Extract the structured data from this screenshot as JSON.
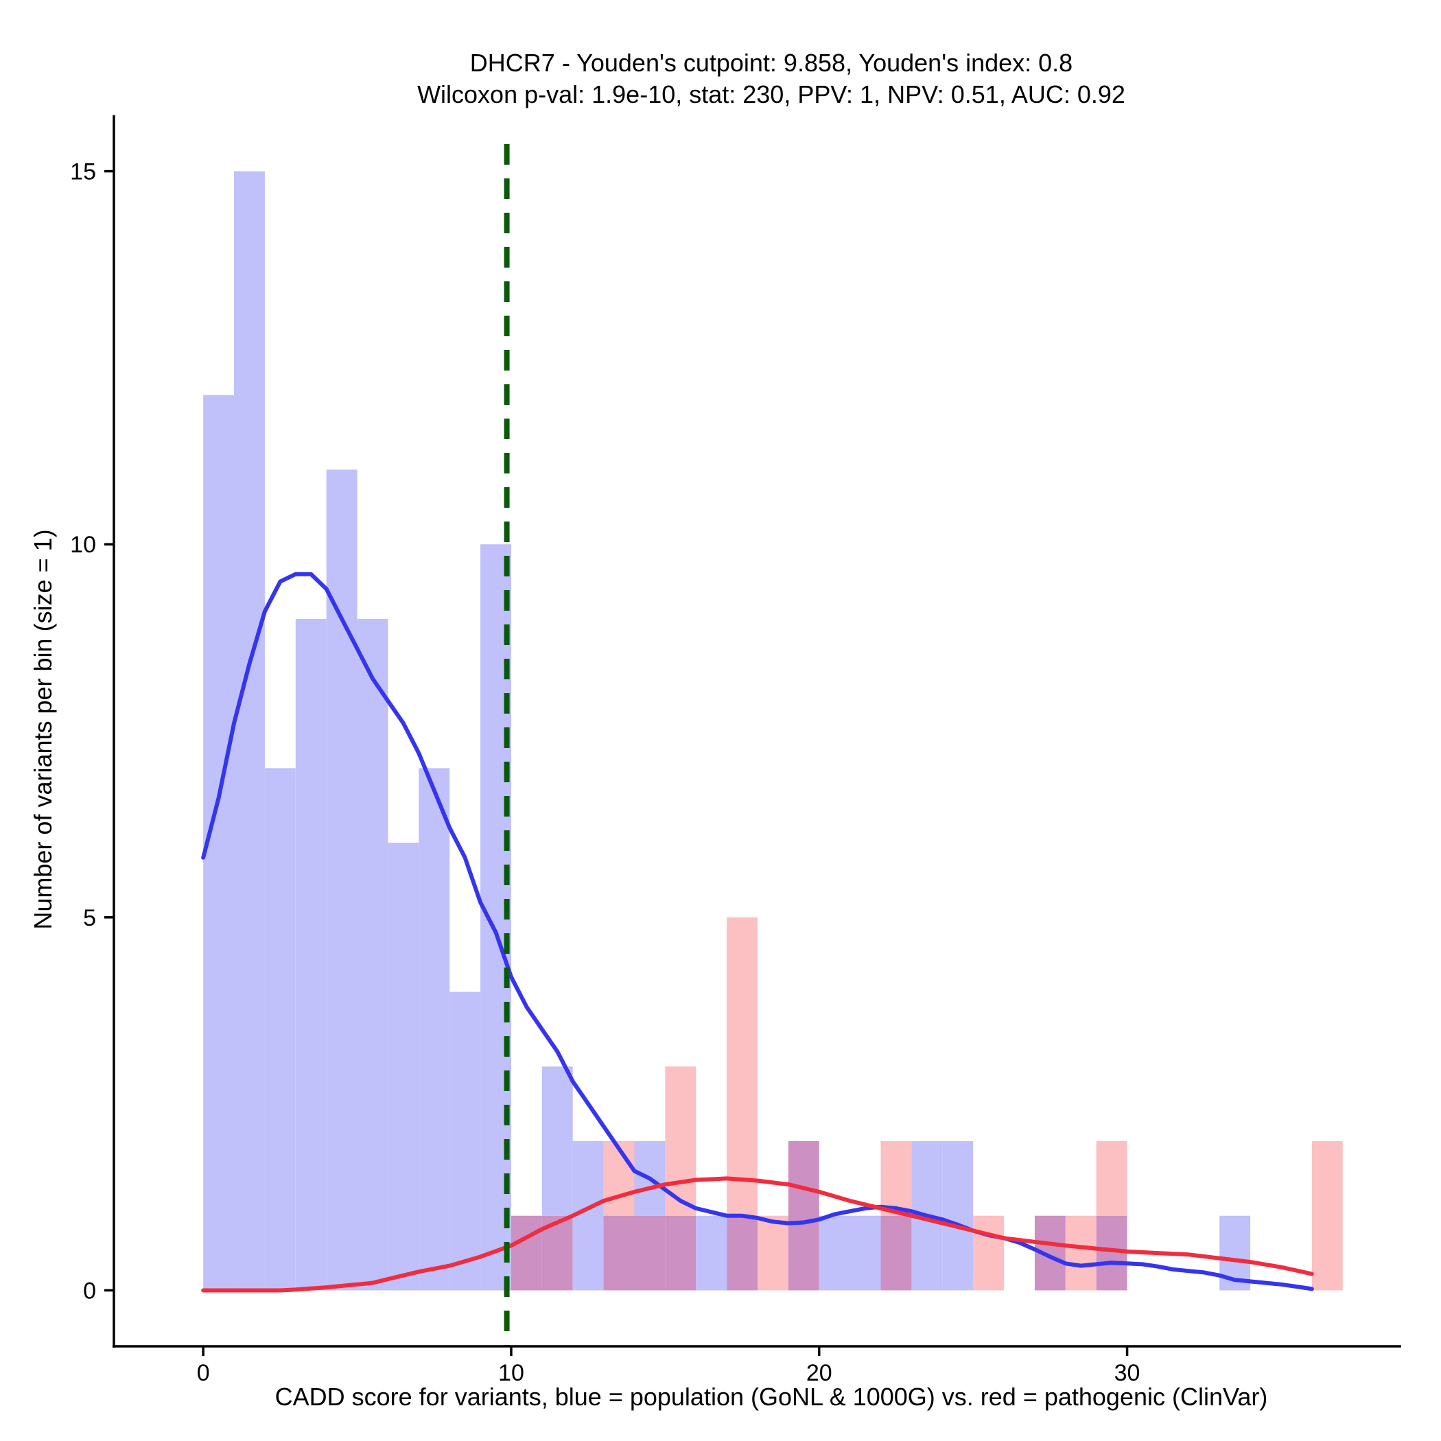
{
  "chart_data": {
    "type": "bar",
    "title": "DHCR7 - Youden's cutpoint: 9.858, Youden's index: 0.8",
    "subtitle": "Wilcoxon p-val: 1.9e-10, stat: 230, PPV: 1, NPV: 0.51, AUC: 0.92",
    "xlabel": "CADD score for variants, blue = population (GoNL & 1000G) vs. red = pathogenic (ClinVar)",
    "ylabel": "Number of variants per bin (size = 1)",
    "xlim": [
      -2.9,
      38.9
    ],
    "ylim": [
      -0.75,
      15.75
    ],
    "xticks": [
      0,
      10,
      20,
      30
    ],
    "yticks": [
      0,
      5,
      10,
      15
    ],
    "bin_width": 1,
    "cutpoint": 9.858,
    "colors": {
      "population_bar": "#c0c0fb",
      "pathogenic_bar": "#fcbfc2",
      "overlap_bar": "#cc90c3",
      "population_density": "#3535ee",
      "pathogenic_density": "#f02d3e",
      "cutpoint_line": "#0a5a0a"
    },
    "series": [
      {
        "bins": [
          {
            "x": 0,
            "count": 12
          },
          {
            "x": 1,
            "count": 15
          },
          {
            "x": 2,
            "count": 7
          },
          {
            "x": 3,
            "count": 9
          },
          {
            "x": 4,
            "count": 11
          },
          {
            "x": 5,
            "count": 9
          },
          {
            "x": 6,
            "count": 6
          },
          {
            "x": 7,
            "count": 7
          },
          {
            "x": 8,
            "count": 4
          },
          {
            "x": 9,
            "count": 10
          },
          {
            "x": 10,
            "count": 1
          },
          {
            "x": 11,
            "count": 3
          },
          {
            "x": 12,
            "count": 2
          },
          {
            "x": 13,
            "count": 1
          },
          {
            "x": 14,
            "count": 2
          },
          {
            "x": 15,
            "count": 1
          },
          {
            "x": 16,
            "count": 1
          },
          {
            "x": 17,
            "count": 1
          },
          {
            "x": 18,
            "count": 0
          },
          {
            "x": 19,
            "count": 2
          },
          {
            "x": 20,
            "count": 1
          },
          {
            "x": 21,
            "count": 1
          },
          {
            "x": 22,
            "count": 1
          },
          {
            "x": 23,
            "count": 2
          },
          {
            "x": 24,
            "count": 2
          },
          {
            "x": 25,
            "count": 0
          },
          {
            "x": 26,
            "count": 0
          },
          {
            "x": 27,
            "count": 1
          },
          {
            "x": 28,
            "count": 0
          },
          {
            "x": 29,
            "count": 1
          },
          {
            "x": 30,
            "count": 0
          },
          {
            "x": 31,
            "count": 0
          },
          {
            "x": 32,
            "count": 0
          },
          {
            "x": 33,
            "count": 1
          },
          {
            "x": 34,
            "count": 0
          },
          {
            "x": 35,
            "count": 0
          },
          {
            "x": 36,
            "count": 0
          }
        ],
        "density": [
          [
            0,
            5.8
          ],
          [
            0.5,
            6.6
          ],
          [
            1,
            7.6
          ],
          [
            1.5,
            8.4
          ],
          [
            2,
            9.1
          ],
          [
            2.5,
            9.5
          ],
          [
            3,
            9.6
          ],
          [
            3.5,
            9.6
          ],
          [
            4,
            9.4
          ],
          [
            4.5,
            9.0
          ],
          [
            5,
            8.6
          ],
          [
            5.5,
            8.2
          ],
          [
            6,
            7.9
          ],
          [
            6.5,
            7.6
          ],
          [
            7,
            7.2
          ],
          [
            7.5,
            6.7
          ],
          [
            8,
            6.2
          ],
          [
            8.5,
            5.8
          ],
          [
            9,
            5.2
          ],
          [
            9.5,
            4.8
          ],
          [
            10,
            4.2
          ],
          [
            10.5,
            3.8
          ],
          [
            11,
            3.5
          ],
          [
            11.5,
            3.2
          ],
          [
            12,
            2.8
          ],
          [
            12.5,
            2.5
          ],
          [
            13,
            2.2
          ],
          [
            13.5,
            1.9
          ],
          [
            14,
            1.6
          ],
          [
            14.5,
            1.5
          ],
          [
            15,
            1.35
          ],
          [
            15.5,
            1.2
          ],
          [
            16,
            1.1
          ],
          [
            16.5,
            1.05
          ],
          [
            17,
            1.0
          ],
          [
            17.5,
            1.0
          ],
          [
            18,
            0.97
          ],
          [
            18.5,
            0.92
          ],
          [
            19,
            0.9
          ],
          [
            19.5,
            0.91
          ],
          [
            20,
            0.95
          ],
          [
            20.5,
            1.02
          ],
          [
            21,
            1.06
          ],
          [
            21.5,
            1.1
          ],
          [
            22,
            1.12
          ],
          [
            22.5,
            1.1
          ],
          [
            23,
            1.06
          ],
          [
            23.5,
            1.0
          ],
          [
            24,
            0.95
          ],
          [
            24.5,
            0.88
          ],
          [
            25,
            0.8
          ],
          [
            25.5,
            0.74
          ],
          [
            26,
            0.7
          ],
          [
            26.5,
            0.64
          ],
          [
            27,
            0.55
          ],
          [
            27.5,
            0.45
          ],
          [
            28,
            0.36
          ],
          [
            28.5,
            0.33
          ],
          [
            29,
            0.35
          ],
          [
            29.5,
            0.37
          ],
          [
            30,
            0.36
          ],
          [
            30.5,
            0.35
          ],
          [
            31,
            0.32
          ],
          [
            31.5,
            0.28
          ],
          [
            32,
            0.26
          ],
          [
            32.5,
            0.24
          ],
          [
            33,
            0.2
          ],
          [
            33.5,
            0.14
          ],
          [
            34,
            0.12
          ],
          [
            34.5,
            0.1
          ],
          [
            35,
            0.08
          ],
          [
            35.5,
            0.05
          ],
          [
            36,
            0.02
          ]
        ]
      },
      {
        "bins": [
          {
            "x": 10,
            "count": 1
          },
          {
            "x": 11,
            "count": 1
          },
          {
            "x": 13,
            "count": 2
          },
          {
            "x": 14,
            "count": 1
          },
          {
            "x": 15,
            "count": 3
          },
          {
            "x": 17,
            "count": 5
          },
          {
            "x": 18,
            "count": 1
          },
          {
            "x": 19,
            "count": 2
          },
          {
            "x": 22,
            "count": 2
          },
          {
            "x": 25,
            "count": 1
          },
          {
            "x": 27,
            "count": 1
          },
          {
            "x": 28,
            "count": 1
          },
          {
            "x": 29,
            "count": 2
          },
          {
            "x": 36,
            "count": 2
          }
        ],
        "density": [
          [
            0,
            0.0
          ],
          [
            1,
            0.0
          ],
          [
            2,
            0.0
          ],
          [
            2.5,
            0.0
          ],
          [
            3,
            0.01
          ],
          [
            4,
            0.04
          ],
          [
            5,
            0.08
          ],
          [
            5.5,
            0.1
          ],
          [
            6,
            0.15
          ],
          [
            7,
            0.25
          ],
          [
            8,
            0.33
          ],
          [
            9,
            0.45
          ],
          [
            10,
            0.6
          ],
          [
            11,
            0.82
          ],
          [
            12,
            1.0
          ],
          [
            13,
            1.2
          ],
          [
            14,
            1.32
          ],
          [
            15,
            1.42
          ],
          [
            16,
            1.48
          ],
          [
            16.5,
            1.49
          ],
          [
            17,
            1.5
          ],
          [
            18,
            1.47
          ],
          [
            19,
            1.42
          ],
          [
            20,
            1.32
          ],
          [
            21,
            1.2
          ],
          [
            22,
            1.1
          ],
          [
            23,
            1.0
          ],
          [
            24,
            0.9
          ],
          [
            25,
            0.8
          ],
          [
            26,
            0.7
          ],
          [
            27,
            0.65
          ],
          [
            28,
            0.6
          ],
          [
            29,
            0.56
          ],
          [
            30,
            0.52
          ],
          [
            31,
            0.5
          ],
          [
            32,
            0.48
          ],
          [
            33,
            0.43
          ],
          [
            34,
            0.38
          ],
          [
            35,
            0.31
          ],
          [
            36,
            0.22
          ]
        ]
      }
    ]
  }
}
